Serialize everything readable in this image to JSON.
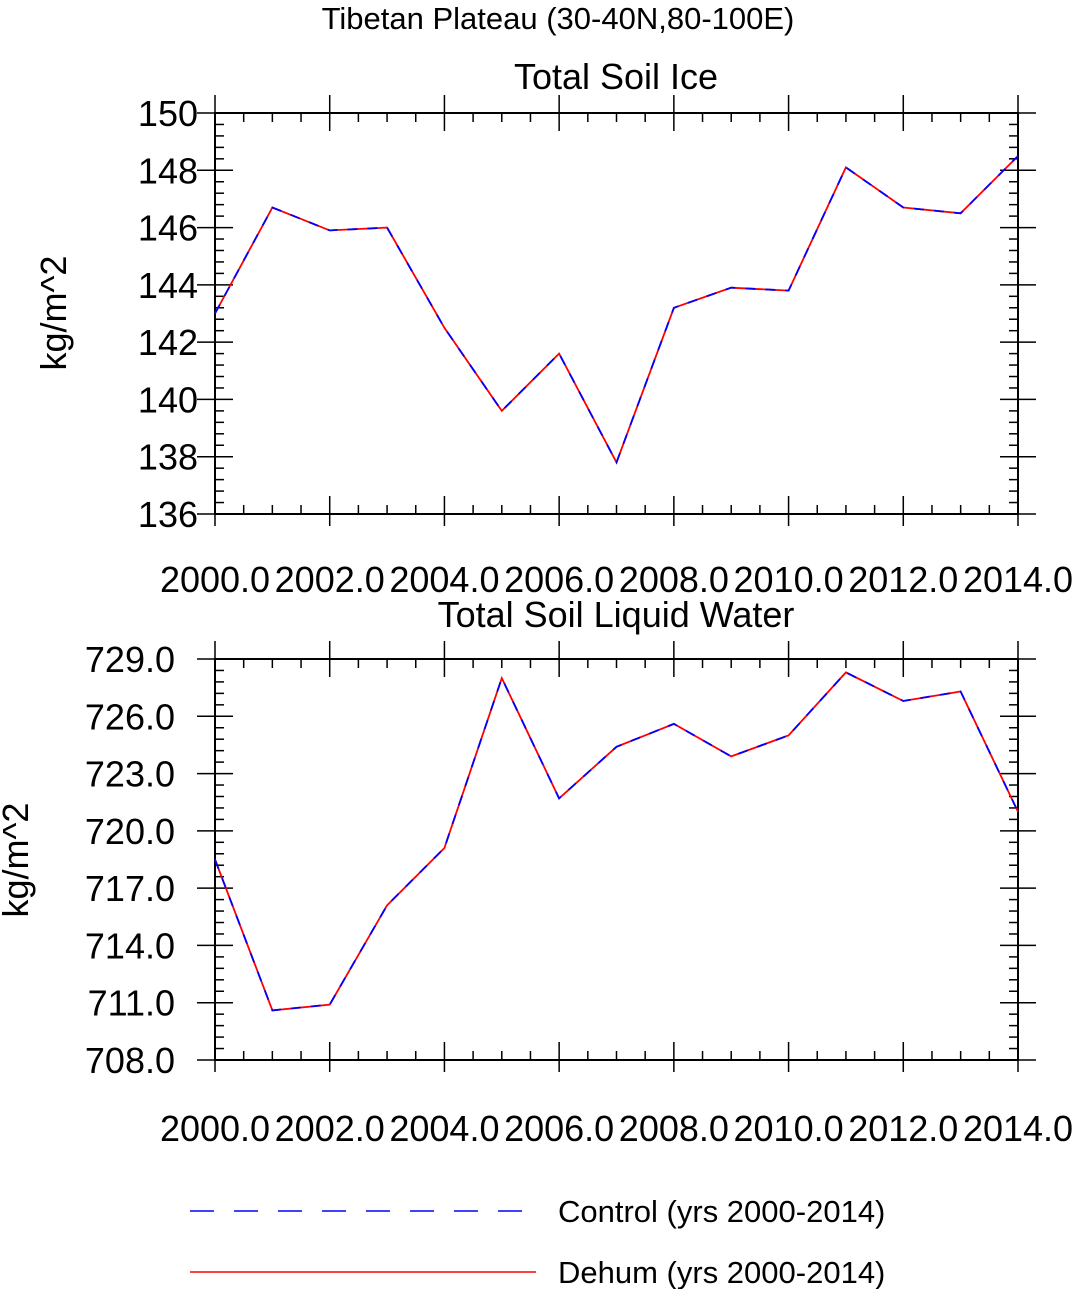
{
  "figure": {
    "title": "Tibetan Plateau (30-40N,80-100E)"
  },
  "colors": {
    "control": "#0000ff",
    "dehum": "#ff0000",
    "axes": "#000000"
  },
  "legend": {
    "placement": "bottom",
    "items": [
      {
        "label": "Control (yrs 2000-2014)",
        "color": "#0000ff",
        "style": "dashed"
      },
      {
        "label": "Dehum (yrs 2000-2014)",
        "color": "#ff0000",
        "style": "solid"
      }
    ]
  },
  "chart_data": [
    {
      "type": "line",
      "title": "Total Soil Ice",
      "xlabel": "",
      "ylabel": "kg/m^2",
      "xlim": [
        2000,
        2014
      ],
      "ylim": [
        136,
        150
      ],
      "xticks": [
        2000,
        2002,
        2004,
        2006,
        2008,
        2010,
        2012,
        2014
      ],
      "xtick_labels": [
        "2000.0",
        "2002.0",
        "2004.0",
        "2006.0",
        "2008.0",
        "2010.0",
        "2012.0",
        "2014.0"
      ],
      "yticks": [
        136,
        138,
        140,
        142,
        144,
        146,
        148,
        150
      ],
      "ytick_labels": [
        "136",
        "138",
        "140",
        "142",
        "144",
        "146",
        "148",
        "150"
      ],
      "grid": false,
      "x": [
        2000,
        2001,
        2002,
        2003,
        2004,
        2005,
        2006,
        2007,
        2008,
        2009,
        2010,
        2011,
        2012,
        2013,
        2014
      ],
      "series": [
        {
          "name": "Control (yrs 2000-2014)",
          "style": "dashed",
          "color": "#0000ff",
          "values": [
            143.0,
            146.7,
            145.9,
            146.0,
            142.5,
            139.6,
            141.6,
            137.8,
            143.2,
            143.9,
            143.8,
            148.1,
            146.7,
            146.5,
            148.5
          ]
        },
        {
          "name": "Dehum (yrs 2000-2014)",
          "style": "solid",
          "color": "#ff0000",
          "values": [
            143.0,
            146.7,
            145.9,
            146.0,
            142.5,
            139.6,
            141.6,
            137.8,
            143.2,
            143.9,
            143.8,
            148.1,
            146.7,
            146.5,
            148.5
          ]
        }
      ]
    },
    {
      "type": "line",
      "title": "Total Soil Liquid Water",
      "xlabel": "",
      "ylabel": "kg/m^2",
      "xlim": [
        2000,
        2014
      ],
      "ylim": [
        708,
        729
      ],
      "xticks": [
        2000,
        2002,
        2004,
        2006,
        2008,
        2010,
        2012,
        2014
      ],
      "xtick_labels": [
        "2000.0",
        "2002.0",
        "2004.0",
        "2006.0",
        "2008.0",
        "2010.0",
        "2012.0",
        "2014.0"
      ],
      "yticks": [
        708,
        711,
        714,
        717,
        720,
        723,
        726,
        729
      ],
      "ytick_labels": [
        "708.0",
        "711.0",
        "714.0",
        "717.0",
        "720.0",
        "723.0",
        "726.0",
        "729.0"
      ],
      "grid": false,
      "x": [
        2000,
        2001,
        2002,
        2003,
        2004,
        2005,
        2006,
        2007,
        2008,
        2009,
        2010,
        2011,
        2012,
        2013,
        2014
      ],
      "series": [
        {
          "name": "Control (yrs 2000-2014)",
          "style": "dashed",
          "color": "#0000ff",
          "values": [
            718.5,
            710.6,
            710.9,
            716.1,
            719.1,
            728.0,
            721.7,
            724.4,
            725.6,
            723.9,
            725.0,
            728.3,
            726.8,
            727.3,
            721.0
          ]
        },
        {
          "name": "Dehum (yrs 2000-2014)",
          "style": "solid",
          "color": "#ff0000",
          "values": [
            718.5,
            710.6,
            710.9,
            716.1,
            719.1,
            728.0,
            721.7,
            724.4,
            725.6,
            723.9,
            725.0,
            728.3,
            726.8,
            727.3,
            721.0
          ]
        }
      ]
    }
  ]
}
